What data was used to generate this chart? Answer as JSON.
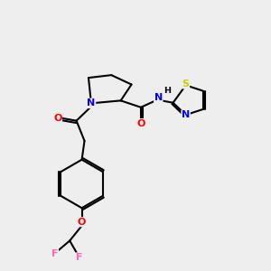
{
  "bg_color": "#eeeeee",
  "bond_color": "#000000",
  "N_color": "#0000ff",
  "O_color": "#ff0000",
  "S_color": "#cccc00",
  "F_color": "#ff69b4",
  "font_size": 8.0,
  "lw": 1.5,
  "fig_size": [
    3.0,
    3.0
  ],
  "dpi": 100,
  "xlim": [
    0,
    10
  ],
  "ylim": [
    0,
    10
  ]
}
